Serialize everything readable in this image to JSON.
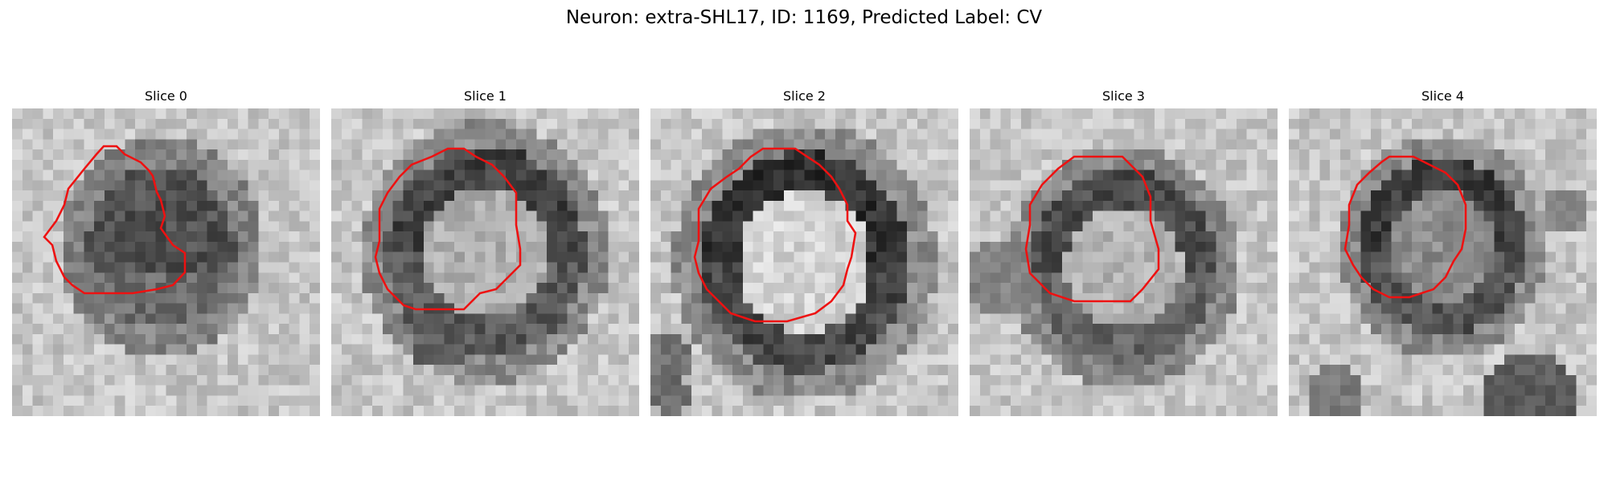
{
  "figure": {
    "title": "Neuron: extra-SHL17, ID: 1169, Predicted Label: CV"
  },
  "panels": [
    {
      "title": "Slice 0"
    },
    {
      "title": "Slice 1"
    },
    {
      "title": "Slice 2"
    },
    {
      "title": "Slice 3"
    },
    {
      "title": "Slice 4"
    }
  ],
  "colors": {
    "background": "#ffffff",
    "contour": "#ee1111"
  }
}
